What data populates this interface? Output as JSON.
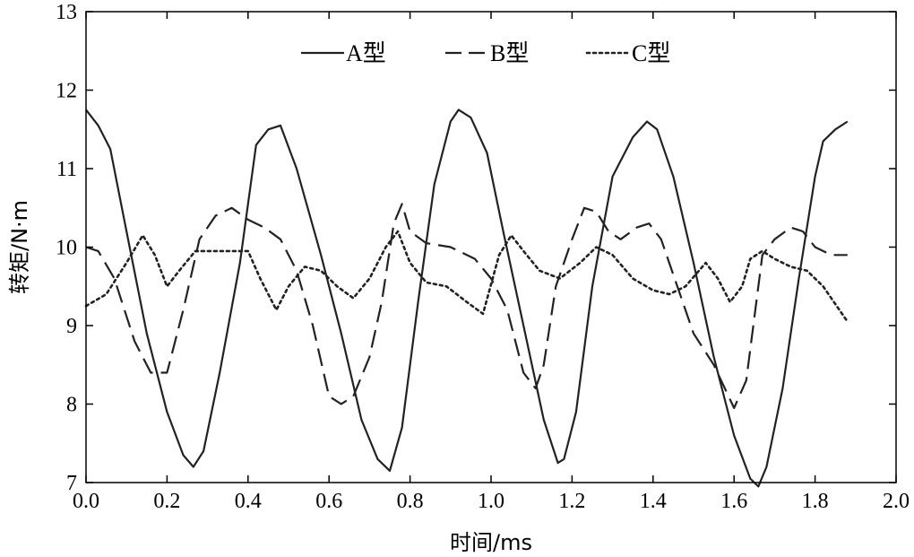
{
  "chart_data": {
    "type": "line",
    "xlabel": "时间/ms",
    "ylabel": "转矩/N·m",
    "xlim": [
      0,
      2.0
    ],
    "ylim": [
      7,
      13
    ],
    "xticks": [
      "0.0",
      "0.2",
      "0.4",
      "0.6",
      "0.8",
      "1.0",
      "1.2",
      "1.4",
      "1.6",
      "1.8",
      "2.0"
    ],
    "yticks": [
      "7",
      "8",
      "9",
      "10",
      "11",
      "12",
      "13"
    ],
    "grid": false,
    "legend_position": "top",
    "series": [
      {
        "name": "A型",
        "style": "solid",
        "x": [
          0.0,
          0.03,
          0.06,
          0.1,
          0.15,
          0.2,
          0.24,
          0.265,
          0.29,
          0.33,
          0.38,
          0.42,
          0.45,
          0.48,
          0.52,
          0.58,
          0.63,
          0.68,
          0.72,
          0.75,
          0.78,
          0.82,
          0.86,
          0.9,
          0.92,
          0.95,
          0.99,
          1.03,
          1.08,
          1.13,
          1.165,
          1.18,
          1.21,
          1.25,
          1.3,
          1.35,
          1.385,
          1.41,
          1.45,
          1.5,
          1.55,
          1.6,
          1.64,
          1.66,
          1.68,
          1.72,
          1.76,
          1.8,
          1.82,
          1.85,
          1.88
        ],
        "values": [
          11.75,
          11.55,
          11.25,
          10.2,
          8.9,
          7.9,
          7.35,
          7.2,
          7.4,
          8.4,
          9.8,
          11.3,
          11.5,
          11.55,
          11.0,
          9.9,
          8.9,
          7.8,
          7.3,
          7.15,
          7.7,
          9.3,
          10.8,
          11.6,
          11.75,
          11.65,
          11.2,
          10.2,
          9.0,
          7.8,
          7.25,
          7.3,
          7.9,
          9.5,
          10.9,
          11.4,
          11.6,
          11.5,
          10.9,
          9.8,
          8.6,
          7.6,
          7.05,
          6.95,
          7.2,
          8.2,
          9.6,
          10.9,
          11.35,
          11.5,
          11.6
        ]
      },
      {
        "name": "B型",
        "style": "dashed",
        "x": [
          0.0,
          0.03,
          0.07,
          0.12,
          0.16,
          0.2,
          0.24,
          0.28,
          0.32,
          0.36,
          0.4,
          0.44,
          0.48,
          0.52,
          0.56,
          0.6,
          0.63,
          0.66,
          0.7,
          0.73,
          0.76,
          0.78,
          0.8,
          0.84,
          0.9,
          0.96,
          1.0,
          1.04,
          1.08,
          1.11,
          1.13,
          1.16,
          1.2,
          1.23,
          1.26,
          1.29,
          1.32,
          1.36,
          1.39,
          1.42,
          1.46,
          1.5,
          1.55,
          1.6,
          1.63,
          1.67,
          1.7,
          1.74,
          1.77,
          1.8,
          1.84,
          1.88
        ],
        "values": [
          10.0,
          9.95,
          9.6,
          8.8,
          8.4,
          8.4,
          9.2,
          10.1,
          10.4,
          10.5,
          10.35,
          10.25,
          10.1,
          9.7,
          9.0,
          8.1,
          8.0,
          8.1,
          8.6,
          9.3,
          10.3,
          10.55,
          10.2,
          10.05,
          10.0,
          9.85,
          9.6,
          9.2,
          8.4,
          8.2,
          8.5,
          9.5,
          10.1,
          10.5,
          10.45,
          10.2,
          10.1,
          10.25,
          10.3,
          10.1,
          9.5,
          8.9,
          8.5,
          7.95,
          8.3,
          9.9,
          10.1,
          10.25,
          10.2,
          10.0,
          9.9,
          9.9
        ]
      },
      {
        "name": "C型",
        "style": "dotted",
        "x": [
          0.0,
          0.05,
          0.1,
          0.14,
          0.17,
          0.2,
          0.23,
          0.27,
          0.32,
          0.36,
          0.4,
          0.43,
          0.47,
          0.5,
          0.54,
          0.58,
          0.62,
          0.66,
          0.7,
          0.74,
          0.77,
          0.8,
          0.84,
          0.89,
          0.94,
          0.98,
          1.02,
          1.05,
          1.08,
          1.12,
          1.17,
          1.22,
          1.26,
          1.3,
          1.35,
          1.4,
          1.44,
          1.48,
          1.53,
          1.56,
          1.59,
          1.62,
          1.64,
          1.67,
          1.7,
          1.74,
          1.78,
          1.82,
          1.86,
          1.88
        ],
        "values": [
          9.25,
          9.4,
          9.8,
          10.15,
          9.9,
          9.5,
          9.7,
          9.95,
          9.95,
          9.95,
          9.95,
          9.6,
          9.2,
          9.5,
          9.75,
          9.7,
          9.5,
          9.35,
          9.6,
          10.0,
          10.2,
          9.8,
          9.55,
          9.5,
          9.3,
          9.15,
          9.9,
          10.15,
          9.95,
          9.7,
          9.6,
          9.8,
          10.0,
          9.9,
          9.6,
          9.45,
          9.4,
          9.5,
          9.8,
          9.6,
          9.3,
          9.5,
          9.85,
          9.95,
          9.85,
          9.75,
          9.7,
          9.5,
          9.2,
          9.05
        ]
      }
    ]
  }
}
